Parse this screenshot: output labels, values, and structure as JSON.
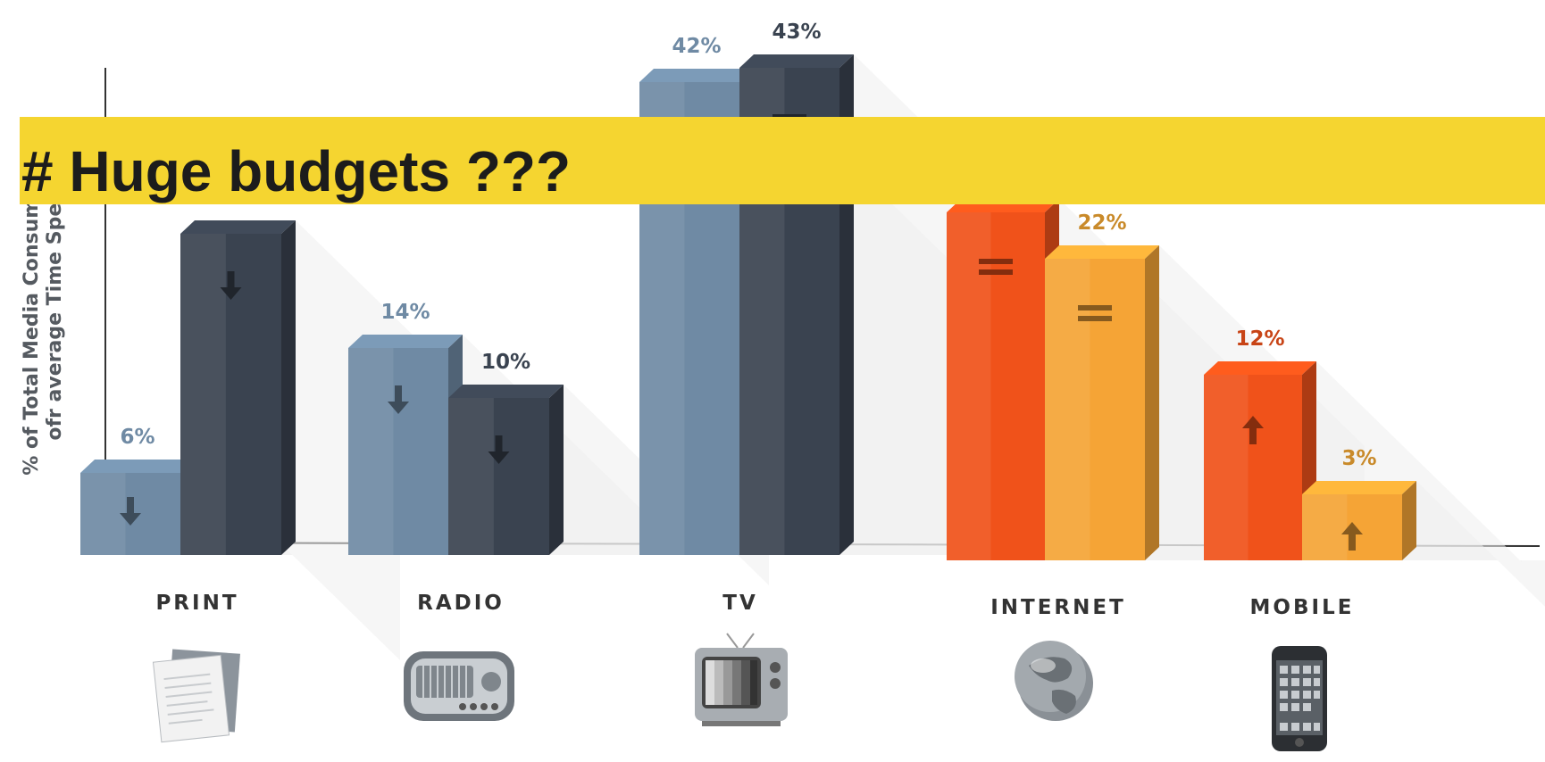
{
  "banner": {
    "title": "# Huge budgets ???"
  },
  "chart_data": {
    "type": "bar",
    "ylabel_lines": [
      "% of Total Media Consumption",
      "ofr average Time Spend"
    ],
    "categories": [
      "PRINT",
      "RADIO",
      "TV",
      "INTERNET",
      "MOBILE"
    ],
    "ylim": [
      0,
      45
    ],
    "grid": false,
    "legend": "none",
    "bars": [
      {
        "category": "PRINT",
        "side": "left",
        "value": 6,
        "label": "6%",
        "indicator": "down",
        "color": "#6f8aa4",
        "label_color": "#6f8aa4"
      },
      {
        "category": "PRINT",
        "side": "right",
        "value": null,
        "label": "",
        "indicator": "down",
        "color": "#3a4350",
        "label_color": "#3a4350"
      },
      {
        "category": "RADIO",
        "side": "left",
        "value": 14,
        "label": "14%",
        "indicator": "down",
        "color": "#6f8aa4",
        "label_color": "#6f8aa4"
      },
      {
        "category": "RADIO",
        "side": "right",
        "value": 10,
        "label": "10%",
        "indicator": "down",
        "color": "#3a4350",
        "label_color": "#3a4350"
      },
      {
        "category": "TV",
        "side": "left",
        "value": 42,
        "label": "42%",
        "indicator": "equal",
        "color": "#6f8aa4",
        "label_color": "#6f8aa4"
      },
      {
        "category": "TV",
        "side": "right",
        "value": 43,
        "label": "43%",
        "indicator": "equal",
        "color": "#3a4350",
        "label_color": "#3a4350"
      },
      {
        "category": "INTERNET",
        "side": "left",
        "value": null,
        "label": "",
        "indicator": "equal",
        "color": "#f0521a",
        "label_color": "#c84416"
      },
      {
        "category": "INTERNET",
        "side": "right",
        "value": 22,
        "label": "22%",
        "indicator": "equal",
        "color": "#f5a436",
        "label_color": "#c98a2a"
      },
      {
        "category": "MOBILE",
        "side": "left",
        "value": 12,
        "label": "12%",
        "indicator": "up",
        "color": "#f0521a",
        "label_color": "#c84416"
      },
      {
        "category": "MOBILE",
        "side": "right",
        "value": 3,
        "label": "3%",
        "indicator": "up",
        "color": "#f5a436",
        "label_color": "#c98a2a"
      }
    ],
    "icons": [
      "document-icon",
      "radio-icon",
      "television-icon",
      "globe-icon",
      "smartphone-icon"
    ]
  }
}
